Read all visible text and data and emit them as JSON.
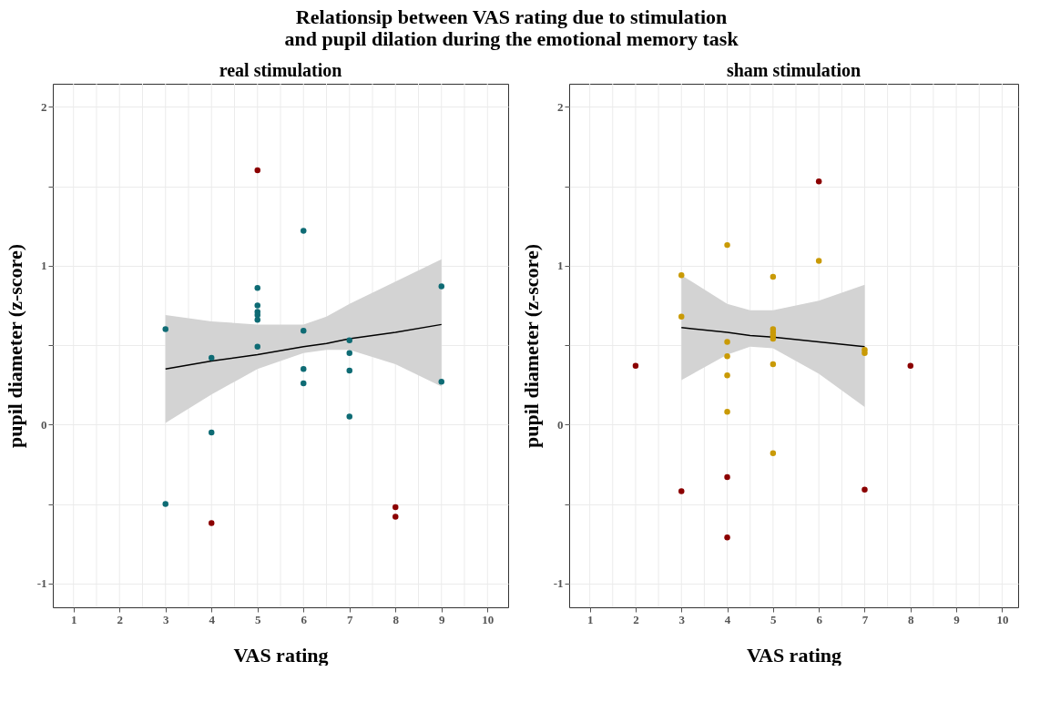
{
  "chart_data": [
    {
      "type": "scatter",
      "title": "real stimulation",
      "xlabel": "VAS rating",
      "ylabel": "pupil diameter (z-score)",
      "annotations": [
        "Relationsip between VAS rating due to stimulation and pupil dilation during the emotional memory task"
      ],
      "xlim": [
        0.55,
        10.45
      ],
      "ylim": [
        -1.15,
        2.145
      ],
      "xticks": [
        1,
        {
          "value": 1.5,
          "label": null
        },
        2,
        {
          "value": 2.5,
          "label": null
        },
        3,
        {
          "value": 3.5,
          "label": null
        },
        4,
        {
          "value": 4.5,
          "label": null
        },
        5,
        {
          "value": 5.5,
          "label": null
        },
        6,
        {
          "value": 6.5,
          "label": null
        },
        7,
        {
          "value": 7.5,
          "label": null
        },
        8,
        {
          "value": 8.5,
          "label": null
        },
        9,
        {
          "value": 9.5,
          "label": null
        },
        10
      ],
      "yticks": [
        -1,
        {
          "value": -0.5,
          "label": null
        },
        0,
        {
          "value": 0.5,
          "label": null
        },
        1,
        {
          "value": 1.5,
          "label": null
        },
        2
      ],
      "grid": true,
      "series": [
        {
          "type": "line",
          "color": "#000000",
          "x": [
            3,
            4,
            5,
            6,
            6.5,
            7,
            8,
            9
          ],
          "values": [
            0.35,
            0.4,
            0.44,
            0.49,
            0.51,
            0.54,
            0.58,
            0.63
          ],
          "lower": [
            0.01,
            0.19,
            0.35,
            0.45,
            0.47,
            0.47,
            0.38,
            0.24
          ],
          "upper": [
            0.69,
            0.65,
            0.63,
            0.63,
            0.68,
            0.76,
            0.9,
            1.04
          ]
        },
        {
          "type": "scatter",
          "marker": "circle",
          "color": "#0e6b74",
          "x": [
            3,
            3,
            4,
            4,
            5,
            5,
            5,
            5,
            5,
            5,
            6,
            6,
            6,
            6,
            7,
            7,
            7,
            7,
            9,
            9
          ],
          "values": [
            0.6,
            -0.5,
            0.42,
            -0.05,
            0.86,
            0.75,
            0.71,
            0.69,
            0.66,
            0.49,
            1.22,
            0.59,
            0.35,
            0.26,
            0.53,
            0.45,
            0.34,
            0.05,
            0.87,
            0.27
          ]
        },
        {
          "type": "scatter",
          "marker": "circle",
          "color": "#8b0000",
          "x": [
            5,
            4,
            8,
            8
          ],
          "values": [
            1.6,
            -0.62,
            -0.52,
            -0.58
          ]
        }
      ]
    },
    {
      "type": "scatter",
      "title": "sham stimulation",
      "xlabel": "VAS rating",
      "ylabel": "pupil diameter (z-score)",
      "xlim": [
        0.55,
        10.35
      ],
      "ylim": [
        -1.15,
        2.145
      ],
      "xticks": [
        1,
        {
          "value": 1.5,
          "label": null
        },
        2,
        {
          "value": 2.5,
          "label": null
        },
        3,
        {
          "value": 3.5,
          "label": null
        },
        4,
        {
          "value": 4.5,
          "label": null
        },
        5,
        {
          "value": 5.5,
          "label": null
        },
        6,
        {
          "value": 6.5,
          "label": null
        },
        7,
        {
          "value": 7.5,
          "label": null
        },
        8,
        {
          "value": 8.5,
          "label": null
        },
        9,
        {
          "value": 9.5,
          "label": null
        },
        10
      ],
      "yticks": [
        -1,
        {
          "value": -0.5,
          "label": null
        },
        0,
        {
          "value": 0.5,
          "label": null
        },
        1,
        {
          "value": 1.5,
          "label": null
        },
        2
      ],
      "grid": true,
      "series": [
        {
          "type": "line",
          "color": "#000000",
          "x": [
            3,
            4,
            4.5,
            5,
            6,
            7
          ],
          "values": [
            0.61,
            0.58,
            0.56,
            0.55,
            0.52,
            0.49
          ],
          "lower": [
            0.28,
            0.44,
            0.49,
            0.48,
            0.32,
            0.11
          ],
          "upper": [
            0.94,
            0.76,
            0.72,
            0.72,
            0.78,
            0.88
          ]
        },
        {
          "type": "scatter",
          "marker": "circle",
          "color": "#c99a06",
          "x": [
            3,
            3,
            4,
            4,
            4,
            4,
            4,
            5,
            5,
            5,
            5,
            5,
            5,
            5,
            6,
            7,
            7
          ],
          "values": [
            0.94,
            0.68,
            1.13,
            0.52,
            0.43,
            0.31,
            0.08,
            0.93,
            0.6,
            0.58,
            0.56,
            0.54,
            0.38,
            -0.18,
            1.03,
            0.47,
            0.45
          ]
        },
        {
          "type": "scatter",
          "marker": "circle",
          "color": "#8b0000",
          "x": [
            6,
            2,
            8,
            3,
            4,
            7,
            4
          ],
          "values": [
            1.53,
            0.37,
            0.37,
            -0.42,
            -0.33,
            -0.41,
            -0.71
          ]
        }
      ]
    }
  ]
}
